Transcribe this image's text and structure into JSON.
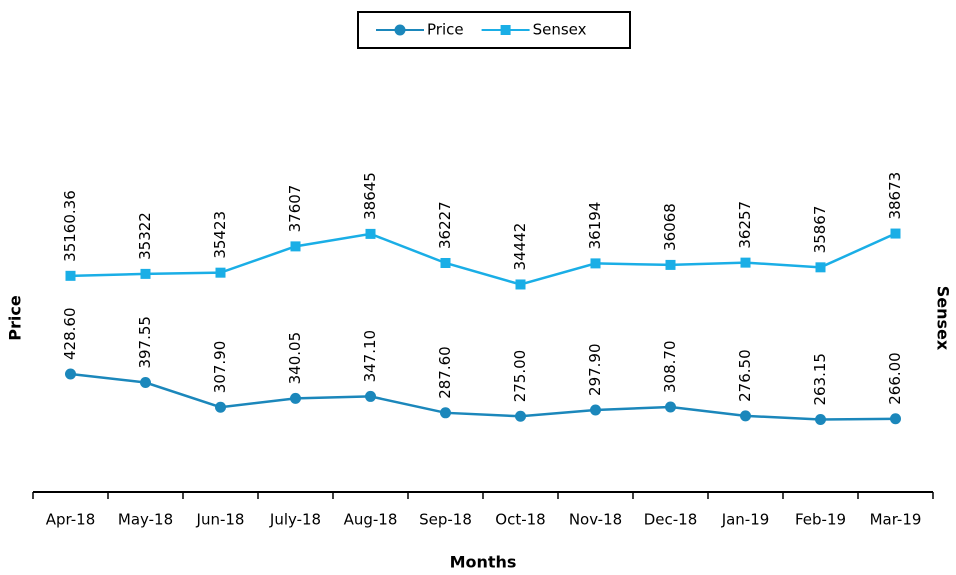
{
  "chart_data": {
    "type": "line",
    "x_label": "Months",
    "y_label": "Price",
    "y2_label": "Sensex",
    "categories": [
      "Apr-18",
      "May-18",
      "Jun-18",
      "July-18",
      "Aug-18",
      "Sep-18",
      "Oct-18",
      "Nov-18",
      "Dec-18",
      "Jan-19",
      "Feb-19",
      "Mar-19"
    ],
    "series": [
      {
        "name": "Price",
        "color": "#1b87bb",
        "marker": "circle",
        "values": [
          428.6,
          397.55,
          307.9,
          340.05,
          347.1,
          287.6,
          275,
          297.9,
          308.7,
          276.5,
          263.15,
          266
        ],
        "value_labels": [
          "428.60",
          "397.55",
          "307.90",
          "340.05",
          "347.10",
          "287.60",
          "275.00",
          "297.90",
          "308.70",
          "276.50",
          "263.15",
          "266.00"
        ]
      },
      {
        "name": "Sensex",
        "color": "#1aaee6",
        "marker": "square",
        "axis": "y2",
        "values": [
          35160.36,
          35322,
          35423,
          37607,
          38645,
          36227,
          34442,
          36194,
          36068,
          36257,
          35867,
          38673
        ],
        "value_labels": [
          "35160.36",
          "35322",
          "35423",
          "37607",
          "38645",
          "36227",
          "34442",
          "36194",
          "36068",
          "36257",
          "35867",
          "38673"
        ]
      }
    ],
    "ylim": [
      0,
      1460
    ],
    "y2lim": [
      17200,
      50600
    ],
    "legend": "top"
  }
}
